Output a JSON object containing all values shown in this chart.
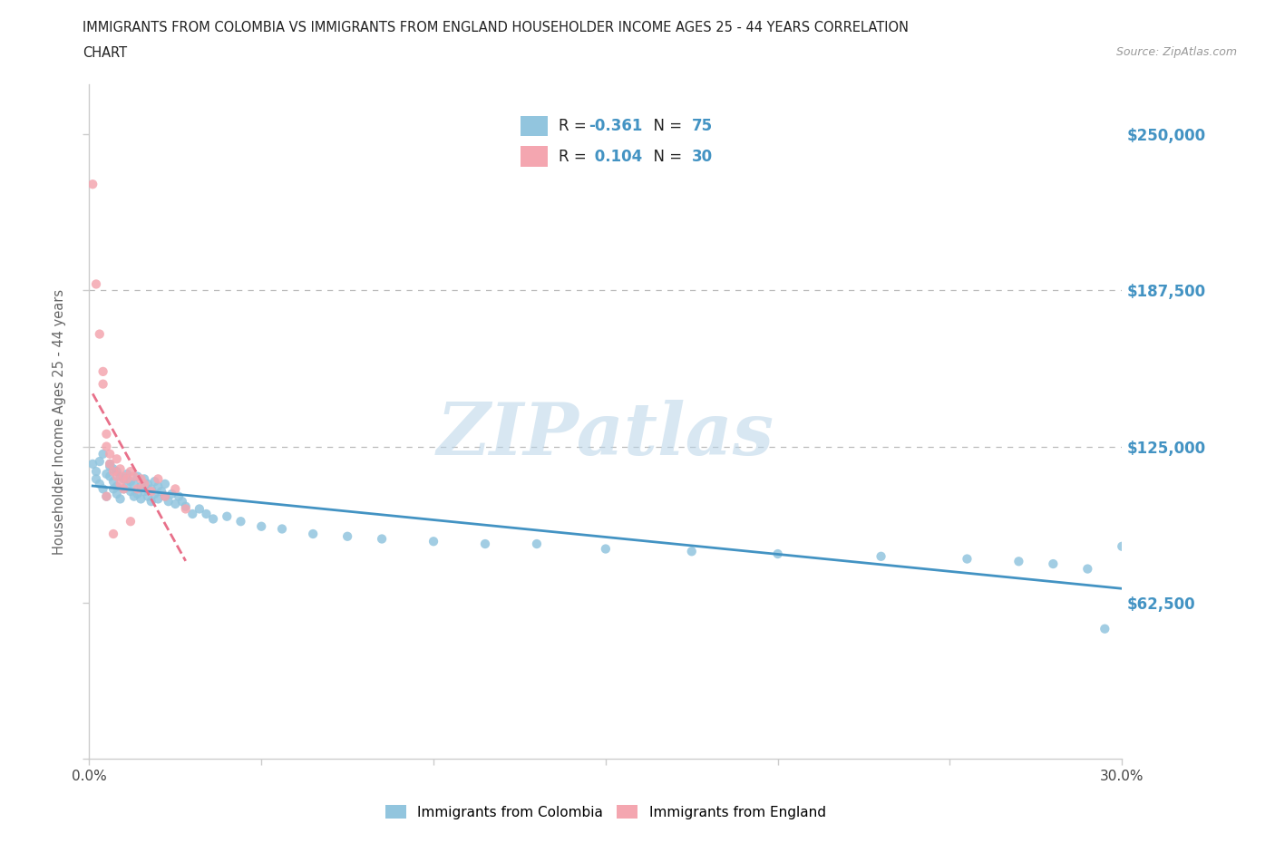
{
  "title_line1": "IMMIGRANTS FROM COLOMBIA VS IMMIGRANTS FROM ENGLAND HOUSEHOLDER INCOME AGES 25 - 44 YEARS CORRELATION",
  "title_line2": "CHART",
  "source": "Source: ZipAtlas.com",
  "ylabel": "Householder Income Ages 25 - 44 years",
  "colombia_color": "#92c5de",
  "england_color": "#f4a6b0",
  "colombia_line_color": "#4393c3",
  "england_line_color": "#e8708a",
  "R_colombia": -0.361,
  "N_colombia": 75,
  "R_england": 0.104,
  "N_england": 30,
  "xlim": [
    0.0,
    0.3
  ],
  "ylim": [
    0,
    270000
  ],
  "yticks": [
    0,
    62500,
    125000,
    187500,
    250000
  ],
  "ytick_labels": [
    "",
    "$62,500",
    "$125,000",
    "$187,500",
    "$250,000"
  ],
  "watermark": "ZIPatlas",
  "colombia_x": [
    0.001,
    0.002,
    0.002,
    0.003,
    0.003,
    0.004,
    0.004,
    0.005,
    0.005,
    0.006,
    0.006,
    0.006,
    0.007,
    0.007,
    0.007,
    0.008,
    0.008,
    0.008,
    0.009,
    0.009,
    0.01,
    0.01,
    0.011,
    0.011,
    0.012,
    0.012,
    0.013,
    0.013,
    0.014,
    0.014,
    0.015,
    0.015,
    0.016,
    0.016,
    0.017,
    0.017,
    0.018,
    0.018,
    0.019,
    0.019,
    0.02,
    0.02,
    0.021,
    0.022,
    0.022,
    0.023,
    0.024,
    0.025,
    0.026,
    0.027,
    0.028,
    0.03,
    0.032,
    0.034,
    0.036,
    0.04,
    0.044,
    0.05,
    0.056,
    0.065,
    0.075,
    0.085,
    0.1,
    0.115,
    0.13,
    0.15,
    0.175,
    0.2,
    0.23,
    0.255,
    0.27,
    0.28,
    0.29,
    0.295,
    0.3
  ],
  "colombia_y": [
    118000,
    115000,
    112000,
    119000,
    110000,
    108000,
    122000,
    105000,
    114000,
    117000,
    113000,
    118000,
    108000,
    111000,
    116000,
    106000,
    109000,
    115000,
    104000,
    113000,
    108000,
    112000,
    109000,
    114000,
    107000,
    111000,
    105000,
    110000,
    106000,
    113000,
    104000,
    109000,
    107000,
    112000,
    105000,
    110000,
    103000,
    108000,
    106000,
    111000,
    104000,
    109000,
    107000,
    105000,
    110000,
    103000,
    106000,
    102000,
    105000,
    103000,
    101000,
    98000,
    100000,
    98000,
    96000,
    97000,
    95000,
    93000,
    92000,
    90000,
    89000,
    88000,
    87000,
    86000,
    86000,
    84000,
    83000,
    82000,
    81000,
    80000,
    79000,
    78000,
    76000,
    52000,
    85000
  ],
  "england_x": [
    0.001,
    0.002,
    0.003,
    0.004,
    0.004,
    0.005,
    0.005,
    0.006,
    0.006,
    0.007,
    0.008,
    0.008,
    0.009,
    0.009,
    0.01,
    0.01,
    0.011,
    0.012,
    0.013,
    0.014,
    0.015,
    0.016,
    0.018,
    0.02,
    0.022,
    0.025,
    0.028,
    0.012,
    0.007,
    0.005
  ],
  "england_y": [
    230000,
    190000,
    170000,
    150000,
    155000,
    130000,
    125000,
    122000,
    118000,
    115000,
    120000,
    113000,
    116000,
    110000,
    113000,
    108000,
    112000,
    115000,
    113000,
    108000,
    112000,
    110000,
    107000,
    112000,
    105000,
    108000,
    100000,
    95000,
    90000,
    105000
  ]
}
